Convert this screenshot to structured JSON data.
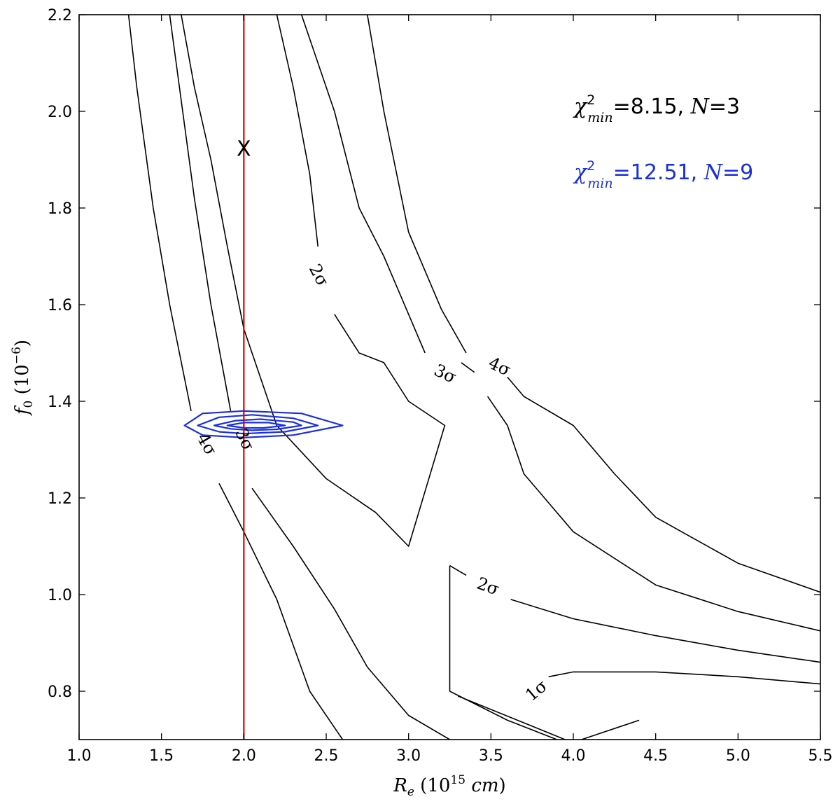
{
  "chart_data": {
    "type": "line",
    "subtype": "contour",
    "title": "",
    "xlabel": "R_e (10^15 cm)",
    "ylabel": "f_0 (10^-6)",
    "xlim": [
      1.0,
      5.5
    ],
    "ylim": [
      0.7,
      2.2
    ],
    "xticks": [
      "1.0",
      "1.5",
      "2.0",
      "2.5",
      "3.0",
      "3.5",
      "4.0",
      "4.5",
      "5.0",
      "5.5"
    ],
    "yticks": [
      "0.8",
      "1.0",
      "1.2",
      "1.4",
      "1.6",
      "1.8",
      "2.0",
      "2.2"
    ],
    "grid": false,
    "annotations": [
      {
        "text": "χ²min=8.15, N=3",
        "color": "#000000"
      },
      {
        "text": "χ²min=12.51, N=9",
        "color": "#1a2fe0"
      }
    ],
    "vertical_line": {
      "x": 2.0,
      "color": "#e00000"
    },
    "marker": {
      "symbol": "X",
      "x": 2.0,
      "y": 1.92
    },
    "contour_colors": {
      "black": "#000000",
      "blue": "#1a2fe0"
    },
    "contours": [
      {
        "label": "1σ",
        "label_pos": [
          3.78,
          0.8
        ],
        "label_angle": -40,
        "points": [
          [
            3.85,
            0.83
          ],
          [
            4.0,
            0.84
          ],
          [
            4.5,
            0.84
          ],
          [
            5.0,
            0.83
          ],
          [
            5.5,
            0.815
          ]
        ]
      },
      {
        "label": "1σ",
        "points": [
          [
            3.25,
            0.8
          ],
          [
            3.6,
            0.74
          ],
          [
            3.9,
            0.7
          ]
        ]
      },
      {
        "label": "2σ",
        "label_pos": [
          3.48,
          1.015
        ],
        "label_angle": 20,
        "points": [
          [
            3.25,
            1.06
          ],
          [
            3.25,
            0.8
          ]
        ]
      },
      {
        "label": "2σ",
        "points": [
          [
            3.25,
            1.06
          ],
          [
            3.35,
            1.04
          ]
        ]
      },
      {
        "label": "2σ",
        "points": [
          [
            3.62,
            0.99
          ],
          [
            4.0,
            0.95
          ],
          [
            4.5,
            0.915
          ],
          [
            5.0,
            0.885
          ],
          [
            5.5,
            0.86
          ]
        ]
      },
      {
        "label": "",
        "points": [
          [
            3.95,
            0.7
          ],
          [
            3.3,
            0.79
          ]
        ]
      },
      {
        "label": "",
        "points": [
          [
            4.05,
            0.7
          ],
          [
            4.4,
            0.74
          ]
        ]
      },
      {
        "label": "2σ",
        "label_pos": [
          2.45,
          1.66
        ],
        "label_angle": 62,
        "points": [
          [
            2.45,
            1.72
          ],
          [
            2.4,
            1.87
          ],
          [
            2.3,
            2.05
          ],
          [
            2.2,
            2.2
          ]
        ]
      },
      {
        "label": "2σ",
        "points": [
          [
            2.55,
            1.58
          ],
          [
            2.7,
            1.5
          ],
          [
            2.85,
            1.48
          ],
          [
            3.0,
            1.4
          ],
          [
            3.22,
            1.35
          ],
          [
            3.0,
            1.1
          ],
          [
            2.8,
            1.17
          ],
          [
            2.5,
            1.24
          ],
          [
            2.2,
            1.35
          ],
          [
            2.0,
            1.55
          ],
          [
            1.9,
            1.72
          ],
          [
            1.8,
            1.9
          ],
          [
            1.7,
            2.05
          ],
          [
            1.62,
            2.2
          ]
        ]
      },
      {
        "label": "3σ",
        "label_pos": [
          3.22,
          1.455
        ],
        "label_angle": 25,
        "points": [
          [
            3.32,
            1.48
          ],
          [
            3.4,
            1.46
          ]
        ]
      },
      {
        "label": "3σ",
        "points": [
          [
            3.1,
            1.5
          ],
          [
            3.0,
            1.58
          ],
          [
            2.85,
            1.7
          ],
          [
            2.7,
            1.8
          ],
          [
            2.55,
            2.0
          ],
          [
            2.35,
            2.2
          ]
        ]
      },
      {
        "label": "3σ",
        "points": [
          [
            3.48,
            1.41
          ],
          [
            3.6,
            1.35
          ],
          [
            3.7,
            1.25
          ],
          [
            4.0,
            1.13
          ],
          [
            4.5,
            1.02
          ],
          [
            5.0,
            0.965
          ],
          [
            5.5,
            0.925
          ]
        ]
      },
      {
        "label": "3σ",
        "label_pos": [
          2.0,
          1.32
        ],
        "label_angle": 65,
        "points": [
          [
            1.92,
            1.38
          ],
          [
            1.8,
            1.6
          ],
          [
            1.7,
            1.82
          ],
          [
            1.55,
            2.2
          ]
        ]
      },
      {
        "label": "3σ",
        "points": [
          [
            2.05,
            1.22
          ],
          [
            2.3,
            1.1
          ],
          [
            2.55,
            0.97
          ],
          [
            2.75,
            0.85
          ],
          [
            3.0,
            0.75
          ],
          [
            3.25,
            0.7
          ]
        ]
      },
      {
        "label": "4σ",
        "label_pos": [
          3.55,
          1.47
        ],
        "label_angle": 25,
        "points": [
          [
            3.6,
            1.45
          ],
          [
            3.7,
            1.41
          ],
          [
            4.0,
            1.35
          ],
          [
            4.25,
            1.25
          ],
          [
            4.5,
            1.16
          ],
          [
            5.0,
            1.065
          ],
          [
            5.5,
            1.005
          ]
        ]
      },
      {
        "label": "4σ",
        "points": [
          [
            3.35,
            1.5
          ],
          [
            3.2,
            1.59
          ],
          [
            3.0,
            1.75
          ],
          [
            2.85,
            2.0
          ],
          [
            2.75,
            2.2
          ]
        ]
      },
      {
        "label": "4σ",
        "label_pos": [
          1.77,
          1.31
        ],
        "label_angle": 60,
        "points": [
          [
            1.68,
            1.38
          ],
          [
            1.55,
            1.6
          ],
          [
            1.45,
            1.8
          ],
          [
            1.35,
            2.05
          ],
          [
            1.3,
            2.2
          ]
        ]
      },
      {
        "label": "4σ",
        "points": [
          [
            1.85,
            1.23
          ],
          [
            2.0,
            1.13
          ],
          [
            2.2,
            0.99
          ],
          [
            2.4,
            0.8
          ],
          [
            2.6,
            0.7
          ]
        ]
      },
      {
        "label": "blue",
        "color": "#1a2fe0",
        "closed": true,
        "points": [
          [
            1.64,
            1.35
          ],
          [
            1.75,
            1.375
          ],
          [
            2.0,
            1.38
          ],
          [
            2.35,
            1.375
          ],
          [
            2.6,
            1.35
          ],
          [
            2.3,
            1.33
          ],
          [
            2.0,
            1.325
          ],
          [
            1.75,
            1.33
          ]
        ]
      },
      {
        "label": "blue",
        "color": "#1a2fe0",
        "closed": true,
        "points": [
          [
            1.72,
            1.35
          ],
          [
            1.85,
            1.367
          ],
          [
            2.05,
            1.372
          ],
          [
            2.3,
            1.365
          ],
          [
            2.45,
            1.35
          ],
          [
            2.25,
            1.337
          ],
          [
            2.0,
            1.333
          ],
          [
            1.85,
            1.337
          ]
        ]
      },
      {
        "label": "blue",
        "color": "#1a2fe0",
        "closed": true,
        "points": [
          [
            1.82,
            1.35
          ],
          [
            1.95,
            1.36
          ],
          [
            2.1,
            1.363
          ],
          [
            2.3,
            1.357
          ],
          [
            2.35,
            1.35
          ],
          [
            2.2,
            1.342
          ],
          [
            2.05,
            1.34
          ],
          [
            1.92,
            1.343
          ]
        ]
      },
      {
        "label": "blue",
        "color": "#1a2fe0",
        "closed": true,
        "points": [
          [
            1.9,
            1.35
          ],
          [
            2.0,
            1.356
          ],
          [
            2.15,
            1.356
          ],
          [
            2.25,
            1.35
          ],
          [
            2.12,
            1.345
          ],
          [
            2.0,
            1.345
          ]
        ]
      }
    ]
  }
}
